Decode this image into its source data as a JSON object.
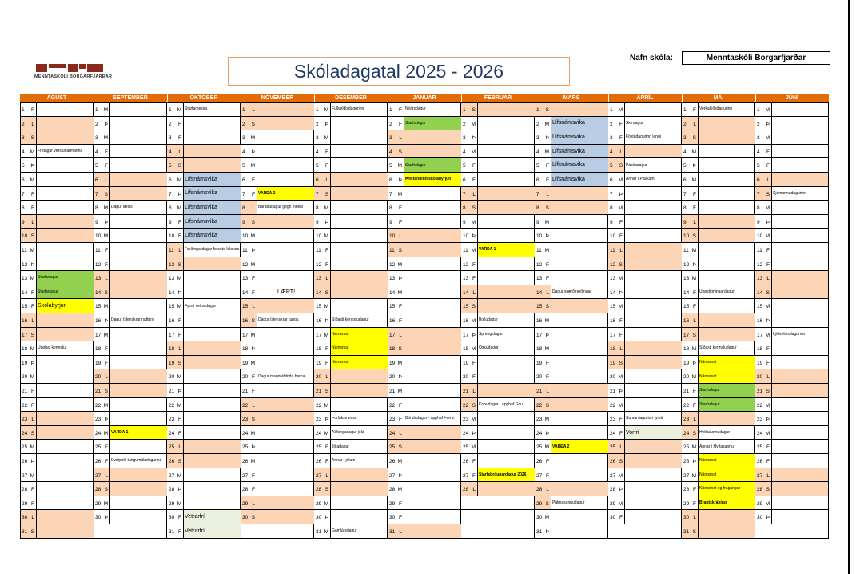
{
  "header": {
    "logo_text": "MENNTASKÓLI BORGARFJARÐAR",
    "title": "Skóladagatal 2025 - 2026",
    "school_label": "Nafn skóla:",
    "school_name": "Menntaskóli Borgarfjarðar"
  },
  "colors": {
    "header_orange": "#e36c09",
    "weekend_peach": "#fbd5b5",
    "green": "#92d050",
    "yellow": "#ffff00",
    "blue": "#b8cce4",
    "light_green": "#ebf1de",
    "title_blue": "#1f3864"
  },
  "months": [
    {
      "name": "ÁGÚST",
      "first_day": 5,
      "days": 31,
      "events": [
        {
          "d": 4,
          "t": "Frídagur verslunarmanna"
        },
        {
          "d": 13,
          "t": "Starfsdagur",
          "c": "green"
        },
        {
          "d": 14,
          "t": "Starfsdagur",
          "c": "green"
        },
        {
          "d": 15,
          "t": "Skólabyrjun",
          "c": "yellow",
          "s": "big"
        },
        {
          "d": 18,
          "t": "Upphaf kennslu"
        }
      ]
    },
    {
      "name": "SEPTEMBER",
      "first_day": 1,
      "days": 30,
      "events": [
        {
          "d": 8,
          "t": "Dagur læsis"
        },
        {
          "d": 16,
          "t": "Dagur íslenskrar náttúru"
        },
        {
          "d": 24,
          "t": "VARÐA 1",
          "c": "yellow",
          "s": "bold"
        },
        {
          "d": 26,
          "t": "Evrópski tungumáladagurinn"
        }
      ]
    },
    {
      "name": "OKTÓBER",
      "first_day": 3,
      "days": 31,
      "events": [
        {
          "d": 1,
          "t": "Starfamessa"
        },
        {
          "d": 6,
          "t": "Lífsnámsvika",
          "c": "blue",
          "s": "big"
        },
        {
          "d": 7,
          "t": "Lífsnámsvika",
          "c": "blue",
          "s": "big"
        },
        {
          "d": 8,
          "t": "Lífsnámsvika",
          "c": "blue",
          "s": "big"
        },
        {
          "d": 9,
          "t": "Lífsnámsvika",
          "c": "blue",
          "s": "big"
        },
        {
          "d": 10,
          "t": "Lífsnámsvika",
          "c": "blue",
          "s": "big"
        },
        {
          "d": 11,
          "t": "Fæðingardagur forseta Íslands (HT)"
        },
        {
          "d": 15,
          "t": "Fyrsti vetrardagur"
        },
        {
          "d": 30,
          "t": "Vetrarfrí",
          "c": "lgreen",
          "s": "big"
        },
        {
          "d": 31,
          "t": "Vetrarfrí",
          "c": "lgreen",
          "s": "big"
        }
      ]
    },
    {
      "name": "NÓVEMBER",
      "first_day": 6,
      "days": 30,
      "events": [
        {
          "d": 7,
          "t": "VARÐA 2",
          "c": "yellow",
          "s": "bold"
        },
        {
          "d": 8,
          "t": "Baráttudagur gegn einelti"
        },
        {
          "d": 14,
          "t": "LÆRT!",
          "s": "center"
        },
        {
          "d": 16,
          "t": "Dagur íslenskrar tungu"
        },
        {
          "d": 20,
          "t": "Dagur mannréttinda barna"
        }
      ]
    },
    {
      "name": "DESEMBER",
      "first_day": 1,
      "days": 31,
      "events": [
        {
          "d": 1,
          "t": "Fullveldisdagurinn"
        },
        {
          "d": 16,
          "t": "Síðasti kennsludagur"
        },
        {
          "d": 17,
          "t": "Námsmat",
          "c": "yellow"
        },
        {
          "d": 18,
          "t": "Námsmat",
          "c": "yellow"
        },
        {
          "d": 19,
          "t": "Námsmat",
          "c": "yellow"
        },
        {
          "d": 23,
          "t": "Þorláksmessa"
        },
        {
          "d": 24,
          "t": "Aðfangadagur jóla"
        },
        {
          "d": 25,
          "t": "Jóladagur"
        },
        {
          "d": 26,
          "t": "Annar í jólum"
        },
        {
          "d": 31,
          "t": "Gamlársdagur"
        }
      ]
    },
    {
      "name": "JANÚAR",
      "first_day": 4,
      "days": 31,
      "events": [
        {
          "d": 1,
          "t": "Nýársdagur"
        },
        {
          "d": 2,
          "t": "Starfsdagur",
          "c": "green"
        },
        {
          "d": 5,
          "t": "Starfsdagur",
          "c": "green"
        },
        {
          "d": 6,
          "t": "Þrettándinn/skólabyrjun",
          "c": "yellow",
          "s": "bold"
        },
        {
          "d": 23,
          "t": "Bóndadagur - upphaf Þorra"
        }
      ]
    },
    {
      "name": "FEBRÚAR",
      "first_day": 0,
      "days": 28,
      "events": [
        {
          "d": 11,
          "t": "VARÐA 1",
          "c": "yellow",
          "s": "bold"
        },
        {
          "d": 16,
          "t": "Bolludagur"
        },
        {
          "d": 17,
          "t": "Sprengidagur"
        },
        {
          "d": 18,
          "t": "Öskudagur"
        },
        {
          "d": 22,
          "t": "Konudagur - upphaf Góu"
        },
        {
          "d": 27,
          "t": "Starfsþróunardagur 2026",
          "c": "yellow",
          "s": "bold"
        }
      ]
    },
    {
      "name": "MARS",
      "first_day": 0,
      "days": 31,
      "events": [
        {
          "d": 2,
          "t": "Lífsnámsvika",
          "c": "blue",
          "s": "big"
        },
        {
          "d": 3,
          "t": "Lífsnámsvika",
          "c": "blue",
          "s": "big"
        },
        {
          "d": 4,
          "t": "Lífsnámsvika",
          "c": "blue",
          "s": "big"
        },
        {
          "d": 5,
          "t": "Lífsnámsvika",
          "c": "blue",
          "s": "big"
        },
        {
          "d": 6,
          "t": "Lífsnámsvika",
          "c": "blue",
          "s": "big"
        },
        {
          "d": 14,
          "t": "Dagur stærðfræðinnar"
        },
        {
          "d": 25,
          "t": "VARÐA 2",
          "c": "yellow",
          "s": "bold"
        },
        {
          "d": 29,
          "t": "Pálmasunnudagur"
        }
      ]
    },
    {
      "name": "APRÍL",
      "first_day": 3,
      "days": 30,
      "events": [
        {
          "d": 2,
          "t": "Skírdagur"
        },
        {
          "d": 3,
          "t": "Föstudagurinn langi"
        },
        {
          "d": 5,
          "t": "Páskadagur"
        },
        {
          "d": 6,
          "t": "Annar í Páskum"
        },
        {
          "d": 23,
          "t": "Sumardagurinn fyrsti"
        },
        {
          "d": 24,
          "t": "Vorfrí",
          "c": "lgreen",
          "s": "big"
        }
      ]
    },
    {
      "name": "MAÍ",
      "first_day": 5,
      "days": 31,
      "events": [
        {
          "d": 1,
          "t": "Verkalýðsdagurinn"
        },
        {
          "d": 14,
          "t": "Uppstigningardagur"
        },
        {
          "d": 18,
          "t": "Síðasti kennsludagur"
        },
        {
          "d": 19,
          "t": "Námsmat",
          "c": "yellow"
        },
        {
          "d": 20,
          "t": "Námsmat",
          "c": "yellow"
        },
        {
          "d": 21,
          "t": "Starfsdagur",
          "c": "green"
        },
        {
          "d": 22,
          "t": "Starfsdagur",
          "c": "green"
        },
        {
          "d": 24,
          "t": "Hvítasunnudagur"
        },
        {
          "d": 25,
          "t": "Annar í Hvítasunnu"
        },
        {
          "d": 26,
          "t": "Námsmat",
          "c": "yellow"
        },
        {
          "d": 27,
          "t": "Námsmat",
          "c": "yellow"
        },
        {
          "d": 28,
          "t": "Námsmat og frágangur",
          "c": "yellow"
        },
        {
          "d": 29,
          "t": "Brautskráning",
          "c": "yellow",
          "s": "bold"
        }
      ]
    },
    {
      "name": "JÚNÍ",
      "first_day": 1,
      "days": 30,
      "events": [
        {
          "d": 7,
          "t": "Sjómannadagurinn"
        },
        {
          "d": 17,
          "t": "Lýðveldisdagurinn"
        }
      ]
    }
  ],
  "weekday_letters": [
    "S",
    "M",
    "Þ",
    "M",
    "F",
    "F",
    "L"
  ]
}
